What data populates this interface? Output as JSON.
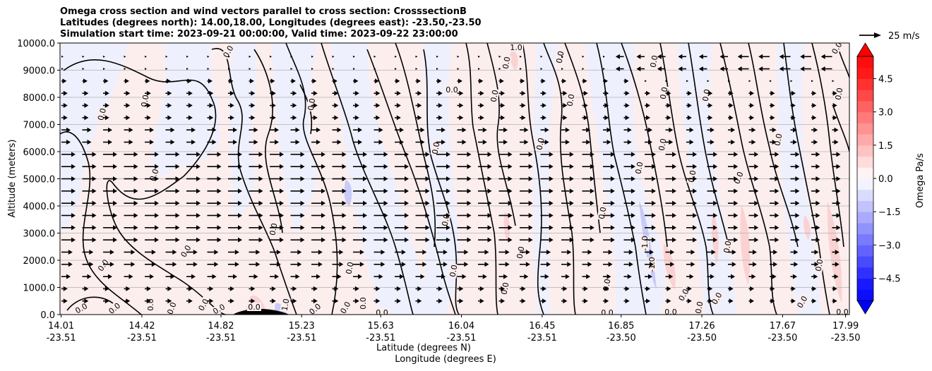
{
  "title_lines": [
    "Omega cross section and wind vectors parallel to cross section: CrosssectionB",
    "Latitudes (degrees north): 14.00,18.00, Longitudes (degrees east): -23.50,-23.50",
    "Simulation start time: 2023-09-21 00:00:00, Valid time: 2023-09-22 23:00:00"
  ],
  "chart_data": {
    "type": "heatmap",
    "ylabel": "Altitude (meters)",
    "xlabel_lines": [
      "Latitude (degrees N)",
      "Longitude (degrees E)"
    ],
    "ylim": [
      0,
      10000
    ],
    "yticks": [
      "0.0",
      "1000.0",
      "2000.0",
      "3000.0",
      "4000.0",
      "5000.0",
      "6000.0",
      "7000.0",
      "8000.0",
      "9000.0",
      "10000.0"
    ],
    "xticks": [
      {
        "lat": "14.01",
        "lon": "-23.51"
      },
      {
        "lat": "14.42",
        "lon": "-23.51"
      },
      {
        "lat": "14.82",
        "lon": "-23.51"
      },
      {
        "lat": "15.23",
        "lon": "-23.51"
      },
      {
        "lat": "15.63",
        "lon": "-23.51"
      },
      {
        "lat": "16.04",
        "lon": "-23.51"
      },
      {
        "lat": "16.45",
        "lon": "-23.51"
      },
      {
        "lat": "16.85",
        "lon": "-23.50"
      },
      {
        "lat": "17.26",
        "lon": "-23.50"
      },
      {
        "lat": "17.67",
        "lon": "-23.50"
      },
      {
        "lat": "17.99",
        "lon": "-23.50"
      }
    ],
    "grid": "horizontal",
    "colorbar": {
      "label": "Omega Pa/s",
      "range": [
        -5.5,
        5.5
      ],
      "ticks": [
        "−4.5",
        "−3.0",
        "−1.5",
        "0.0",
        "1.5",
        "3.0",
        "4.5"
      ],
      "colormap": "bwr",
      "extend": "both"
    },
    "quiver_key": "25 m/s",
    "contour_labels": [
      "0.0",
      "1.0",
      "-1.0"
    ],
    "wind_direction": "northward, strongest between 2000 and 6000 m"
  }
}
